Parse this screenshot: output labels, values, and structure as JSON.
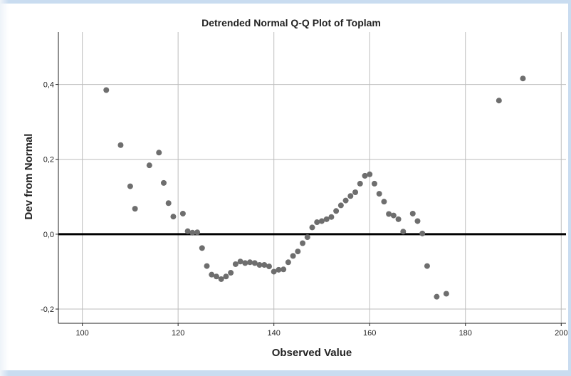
{
  "chart_data": {
    "type": "scatter",
    "title": "Detrended Normal Q-Q Plot of Toplam",
    "xlabel": "Observed Value",
    "ylabel": "Dev from Normal",
    "xlim": [
      95,
      201
    ],
    "ylim": [
      -0.238,
      0.54
    ],
    "x_ticks": [
      100,
      120,
      140,
      160,
      180,
      200
    ],
    "x_tick_labels": [
      "100",
      "120",
      "140",
      "160",
      "180",
      "200"
    ],
    "y_ticks": [
      -0.2,
      0.0,
      0.2,
      0.4
    ],
    "y_tick_labels": [
      "-0,2",
      "0,0",
      "0,2",
      "0,4"
    ],
    "grid": true,
    "reference_line_y": 0,
    "point_color": "#6e6e6e",
    "points": [
      [
        105,
        0.385
      ],
      [
        108,
        0.238
      ],
      [
        110,
        0.128
      ],
      [
        111,
        0.068
      ],
      [
        114,
        0.184
      ],
      [
        116,
        0.218
      ],
      [
        117,
        0.137
      ],
      [
        118,
        0.083
      ],
      [
        119,
        0.047
      ],
      [
        121,
        0.055
      ],
      [
        122,
        0.008
      ],
      [
        123,
        0.004
      ],
      [
        124,
        0.005
      ],
      [
        125,
        -0.037
      ],
      [
        126,
        -0.085
      ],
      [
        127,
        -0.108
      ],
      [
        128,
        -0.113
      ],
      [
        129,
        -0.12
      ],
      [
        130,
        -0.113
      ],
      [
        131,
        -0.103
      ],
      [
        132,
        -0.08
      ],
      [
        133,
        -0.073
      ],
      [
        134,
        -0.077
      ],
      [
        135,
        -0.075
      ],
      [
        136,
        -0.077
      ],
      [
        137,
        -0.082
      ],
      [
        138,
        -0.082
      ],
      [
        139,
        -0.086
      ],
      [
        140,
        -0.1
      ],
      [
        141,
        -0.095
      ],
      [
        142,
        -0.094
      ],
      [
        143,
        -0.075
      ],
      [
        144,
        -0.058
      ],
      [
        145,
        -0.046
      ],
      [
        146,
        -0.024
      ],
      [
        147,
        -0.008
      ],
      [
        148,
        0.018
      ],
      [
        149,
        0.032
      ],
      [
        150,
        0.035
      ],
      [
        151,
        0.04
      ],
      [
        152,
        0.046
      ],
      [
        153,
        0.062
      ],
      [
        154,
        0.077
      ],
      [
        155,
        0.09
      ],
      [
        156,
        0.102
      ],
      [
        157,
        0.112
      ],
      [
        158,
        0.135
      ],
      [
        159,
        0.156
      ],
      [
        160,
        0.16
      ],
      [
        161,
        0.135
      ],
      [
        162,
        0.108
      ],
      [
        163,
        0.087
      ],
      [
        164,
        0.054
      ],
      [
        165,
        0.05
      ],
      [
        166,
        0.04
      ],
      [
        167,
        0.007
      ],
      [
        169,
        0.055
      ],
      [
        170,
        0.035
      ],
      [
        171,
        0.002
      ],
      [
        172,
        -0.085
      ],
      [
        174,
        -0.167
      ],
      [
        176,
        -0.159
      ],
      [
        187,
        0.357
      ],
      [
        192,
        0.416
      ]
    ]
  }
}
